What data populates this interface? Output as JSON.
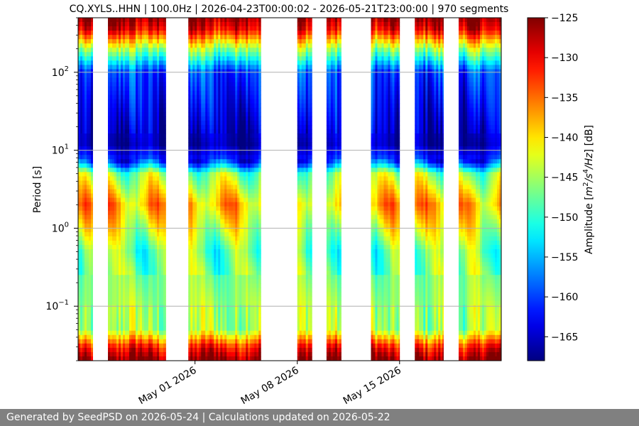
{
  "chart_data": {
    "type": "heatmap",
    "title": "CQ.XYLS..HHN | 100.0Hz | 2026-04-23T00:00:02 - 2026-05-21T23:00:00 | 970 segments",
    "ylabel": "Period [s]",
    "y_scale": "log",
    "y_inverted": true,
    "ylim": [
      0.02,
      500
    ],
    "x_range": [
      "2026-04-23T00:00:02",
      "2026-05-21T23:00:00"
    ],
    "x_tick_labels": [
      {
        "date": "2026-05-01",
        "label": "May 01 2026"
      },
      {
        "date": "2026-05-08",
        "label": "May 08 2026"
      },
      {
        "date": "2026-05-15",
        "label": "May 15 2026"
      }
    ],
    "y_ticks": [
      {
        "value": 0.1,
        "base": "10",
        "exp": "−1"
      },
      {
        "value": 1,
        "base": "10",
        "exp": "0"
      },
      {
        "value": 10,
        "base": "10",
        "exp": "1"
      },
      {
        "value": 100,
        "base": "10",
        "exp": "2"
      }
    ],
    "grid": true,
    "colormap": "jet",
    "colorbar": {
      "label_parts": [
        "Amplitude [",
        "m",
        "2",
        "/s",
        "4",
        "/Hz",
        "] [dB]"
      ],
      "min": -168,
      "max": -125,
      "ticks": [
        -125,
        -130,
        -135,
        -140,
        -145,
        -150,
        -155,
        -160,
        -165
      ],
      "tick_labels": [
        "−125",
        "−130",
        "−135",
        "−140",
        "−145",
        "−150",
        "−155",
        "−160",
        "−165"
      ]
    },
    "data_segments": [
      {
        "start": "2026-04-23T00:00",
        "end": "2026-04-24T00:00"
      },
      {
        "start": "2026-04-25T01:00",
        "end": "2026-04-29T00:00"
      },
      {
        "start": "2026-04-30T13:00",
        "end": "2026-05-05T12:00"
      },
      {
        "start": "2026-05-08T00:00",
        "end": "2026-05-09T00:00"
      },
      {
        "start": "2026-05-10T00:00",
        "end": "2026-05-11T00:00"
      },
      {
        "start": "2026-05-13T01:00",
        "end": "2026-05-15T00:00"
      },
      {
        "start": "2026-05-16T01:00",
        "end": "2026-05-18T00:00"
      },
      {
        "start": "2026-05-19T01:00",
        "end": "2026-05-21T23:00"
      }
    ],
    "noise_profile": [
      {
        "period": 0.02,
        "db": -125
      },
      {
        "period": 0.03,
        "db": -131
      },
      {
        "period": 0.05,
        "db": -145
      },
      {
        "period": 0.1,
        "db": -145
      },
      {
        "period": 0.5,
        "db": -148
      },
      {
        "period": 2,
        "db": -138
      },
      {
        "period": 5,
        "db": -146
      },
      {
        "period": 7,
        "db": -160
      },
      {
        "period": 12,
        "db": -166
      },
      {
        "period": 100,
        "db": -160
      },
      {
        "period": 200,
        "db": -145
      },
      {
        "period": 350,
        "db": -130
      },
      {
        "period": 500,
        "db": -126
      }
    ]
  },
  "footer": {
    "text": "Generated by SeedPSD on 2026-05-24 | Calculations updated on 2026-05-22"
  }
}
